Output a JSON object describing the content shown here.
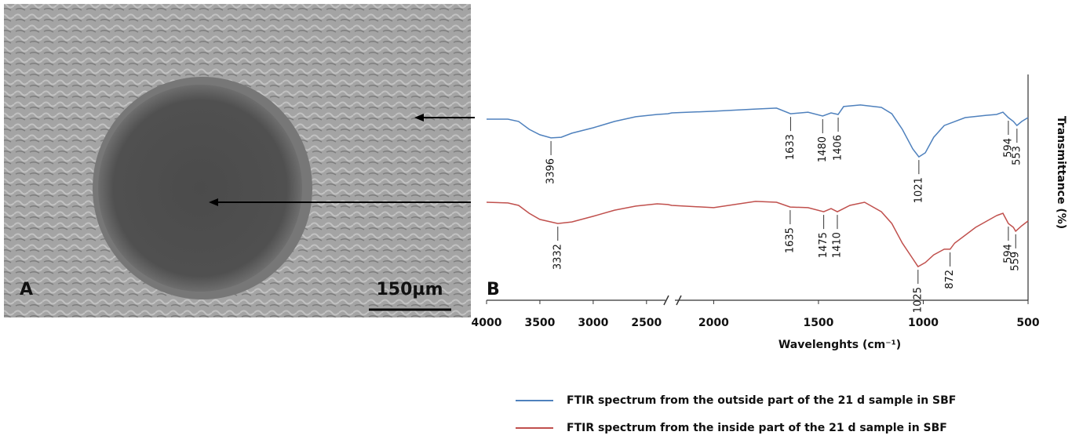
{
  "chart_data": {
    "type": "line",
    "panel_a_label": "A",
    "scale_bar": "150µm",
    "panel_b_label": "B",
    "xlabel": "Wavelenghts (cm⁻¹)",
    "ylabel": "Transmittance (%)",
    "xlim": [
      4000,
      500
    ],
    "x_break": [
      2300,
      2200
    ],
    "xticks": [
      4000,
      3500,
      3000,
      2500,
      2000,
      1500,
      1000,
      500
    ],
    "ylim": [
      0,
      100
    ],
    "series": [
      {
        "name": "FTIR spectrum from the outside part of the 21 d sample in SBF",
        "color": "#4f81bd",
        "x": [
          4000,
          3800,
          3700,
          3600,
          3500,
          3396,
          3300,
          3200,
          3000,
          2800,
          2600,
          2400,
          2300,
          2200,
          2000,
          1800,
          1700,
          1633,
          1550,
          1480,
          1440,
          1406,
          1380,
          1300,
          1200,
          1150,
          1100,
          1050,
          1021,
          990,
          950,
          900,
          800,
          700,
          650,
          620,
          594,
          570,
          553,
          530,
          500
        ],
        "values": [
          80.2,
          80.2,
          79.2,
          75.7,
          73.3,
          71.9,
          72.2,
          74.0,
          76.4,
          79.2,
          81.3,
          82.3,
          82.6,
          83.0,
          83.7,
          84.7,
          85.1,
          82.6,
          83.3,
          81.6,
          83.0,
          82.3,
          85.8,
          86.5,
          85.4,
          82.6,
          75.7,
          67.0,
          63.5,
          65.3,
          72.2,
          77.4,
          80.9,
          81.9,
          82.3,
          83.3,
          80.9,
          79.2,
          77.4,
          79.2,
          80.9
        ],
        "peaks": [
          3396,
          1633,
          1480,
          1406,
          1021,
          594,
          553
        ]
      },
      {
        "name": "FTIR spectrum from the inside part of the 21 d sample in SBF",
        "color": "#c0504d",
        "x": [
          4000,
          3800,
          3700,
          3600,
          3500,
          3332,
          3200,
          3000,
          2800,
          2600,
          2400,
          2300,
          2200,
          2000,
          1800,
          1700,
          1635,
          1550,
          1475,
          1440,
          1410,
          1350,
          1280,
          1200,
          1150,
          1100,
          1050,
          1025,
          990,
          950,
          900,
          872,
          850,
          750,
          650,
          620,
          594,
          570,
          559,
          530,
          500
        ],
        "values": [
          43.4,
          43.1,
          42.0,
          38.5,
          35.8,
          34.0,
          34.7,
          37.2,
          39.9,
          41.7,
          42.7,
          42.4,
          42.0,
          41.0,
          43.8,
          43.4,
          41.3,
          41.0,
          39.2,
          40.6,
          39.2,
          42.0,
          43.4,
          39.2,
          34.0,
          25.3,
          18.4,
          14.9,
          16.7,
          20.1,
          22.6,
          22.6,
          25.3,
          32.3,
          37.5,
          38.5,
          34.0,
          32.3,
          30.6,
          33.0,
          35.1
        ],
        "peaks": [
          3332,
          1635,
          1475,
          1410,
          1025,
          872,
          594,
          559
        ]
      }
    ]
  }
}
